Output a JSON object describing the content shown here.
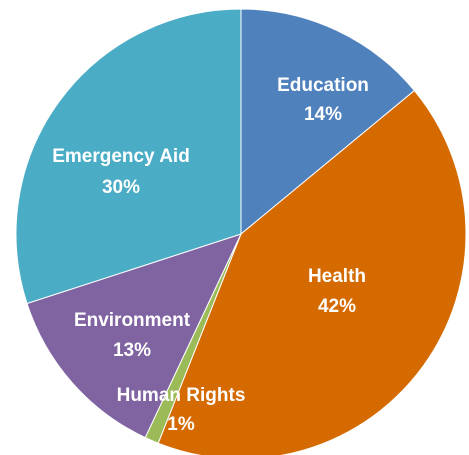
{
  "chart_data": {
    "type": "pie",
    "start_angle_deg": 0,
    "direction": "clockwise",
    "title": "",
    "legend": "none",
    "slices": [
      {
        "name": "Education",
        "value": 14,
        "label": "14%",
        "color": "#4F81BD"
      },
      {
        "name": "Health",
        "value": 42,
        "label": "42%",
        "color": "#D46A00"
      },
      {
        "name": "Human Rights",
        "value": 1,
        "label": "1%",
        "color": "#9BBB59"
      },
      {
        "name": "Environment",
        "value": 13,
        "label": "13%",
        "color": "#8064A2"
      },
      {
        "name": "Emergency Aid",
        "value": 30,
        "label": "30%",
        "color": "#4BACC6"
      }
    ]
  }
}
